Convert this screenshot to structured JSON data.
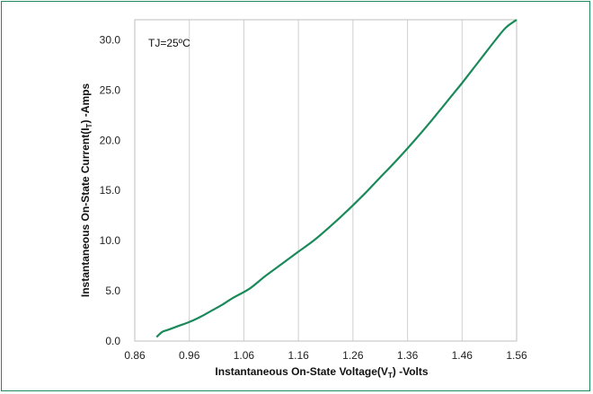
{
  "chart_data": {
    "type": "line",
    "x_ticks": [
      "0.86",
      "0.96",
      "1.06",
      "1.16",
      "1.26",
      "1.36",
      "1.46",
      "1.56"
    ],
    "y_ticks": [
      "0.0",
      "5.0",
      "10.0",
      "15.0",
      "20.0",
      "25.0",
      "30.0"
    ],
    "xlim": [
      0.86,
      1.56
    ],
    "ylim": [
      0,
      32
    ],
    "x_label": {
      "main": "Instantaneous On-State Voltage(V",
      "sub": "T",
      "tail": ") -Volts"
    },
    "y_label": {
      "main": "Instantaneous On-State Current(I",
      "sub": "T",
      "tail": ") -Amps"
    },
    "annotation": "TJ=25ºC",
    "grid": "vertical",
    "series": [
      {
        "color": "#1a8a5a",
        "x": [
          0.9,
          0.91,
          0.92,
          0.94,
          0.96,
          0.98,
          1.0,
          1.02,
          1.04,
          1.07,
          1.1,
          1.13,
          1.16,
          1.19,
          1.22,
          1.25,
          1.28,
          1.31,
          1.34,
          1.37,
          1.4,
          1.43,
          1.46,
          1.49,
          1.52,
          1.54,
          1.56
        ],
        "y": [
          0.4,
          0.9,
          1.1,
          1.5,
          1.9,
          2.4,
          3.0,
          3.6,
          4.3,
          5.2,
          6.5,
          7.7,
          8.9,
          10.1,
          11.5,
          13.0,
          14.6,
          16.3,
          18.0,
          19.8,
          21.7,
          23.7,
          25.7,
          27.8,
          29.9,
          31.2,
          32.0
        ]
      }
    ]
  }
}
